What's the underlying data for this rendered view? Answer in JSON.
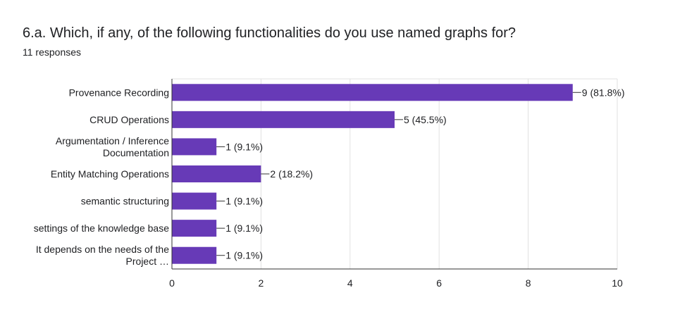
{
  "question": {
    "title": "6.a. Which, if any, of the following functionalities do you use named graphs for?",
    "responses": "11 responses"
  },
  "chart_data": {
    "type": "bar",
    "orientation": "horizontal",
    "categories": [
      [
        "Provenance Recording"
      ],
      [
        "CRUD Operations"
      ],
      [
        "Argumentation / Inference",
        "Documentation"
      ],
      [
        "Entity Matching Operations"
      ],
      [
        "semantic structuring"
      ],
      [
        "settings of the knowledge base"
      ],
      [
        "It depends on the needs of the",
        "Project …"
      ]
    ],
    "values": [
      9,
      5,
      1,
      2,
      1,
      1,
      1
    ],
    "value_labels": [
      "9 (81.8%)",
      "5 (45.5%)",
      "1 (9.1%)",
      "2 (18.2%)",
      "1 (9.1%)",
      "1 (9.1%)",
      "1 (9.1%)"
    ],
    "xlim": [
      0,
      10
    ],
    "xticks": [
      0,
      2,
      4,
      6,
      8,
      10
    ],
    "grid": true,
    "colors": {
      "bar": "#673ab7",
      "grid": "#e0e0e0",
      "axis": "#333333"
    }
  }
}
